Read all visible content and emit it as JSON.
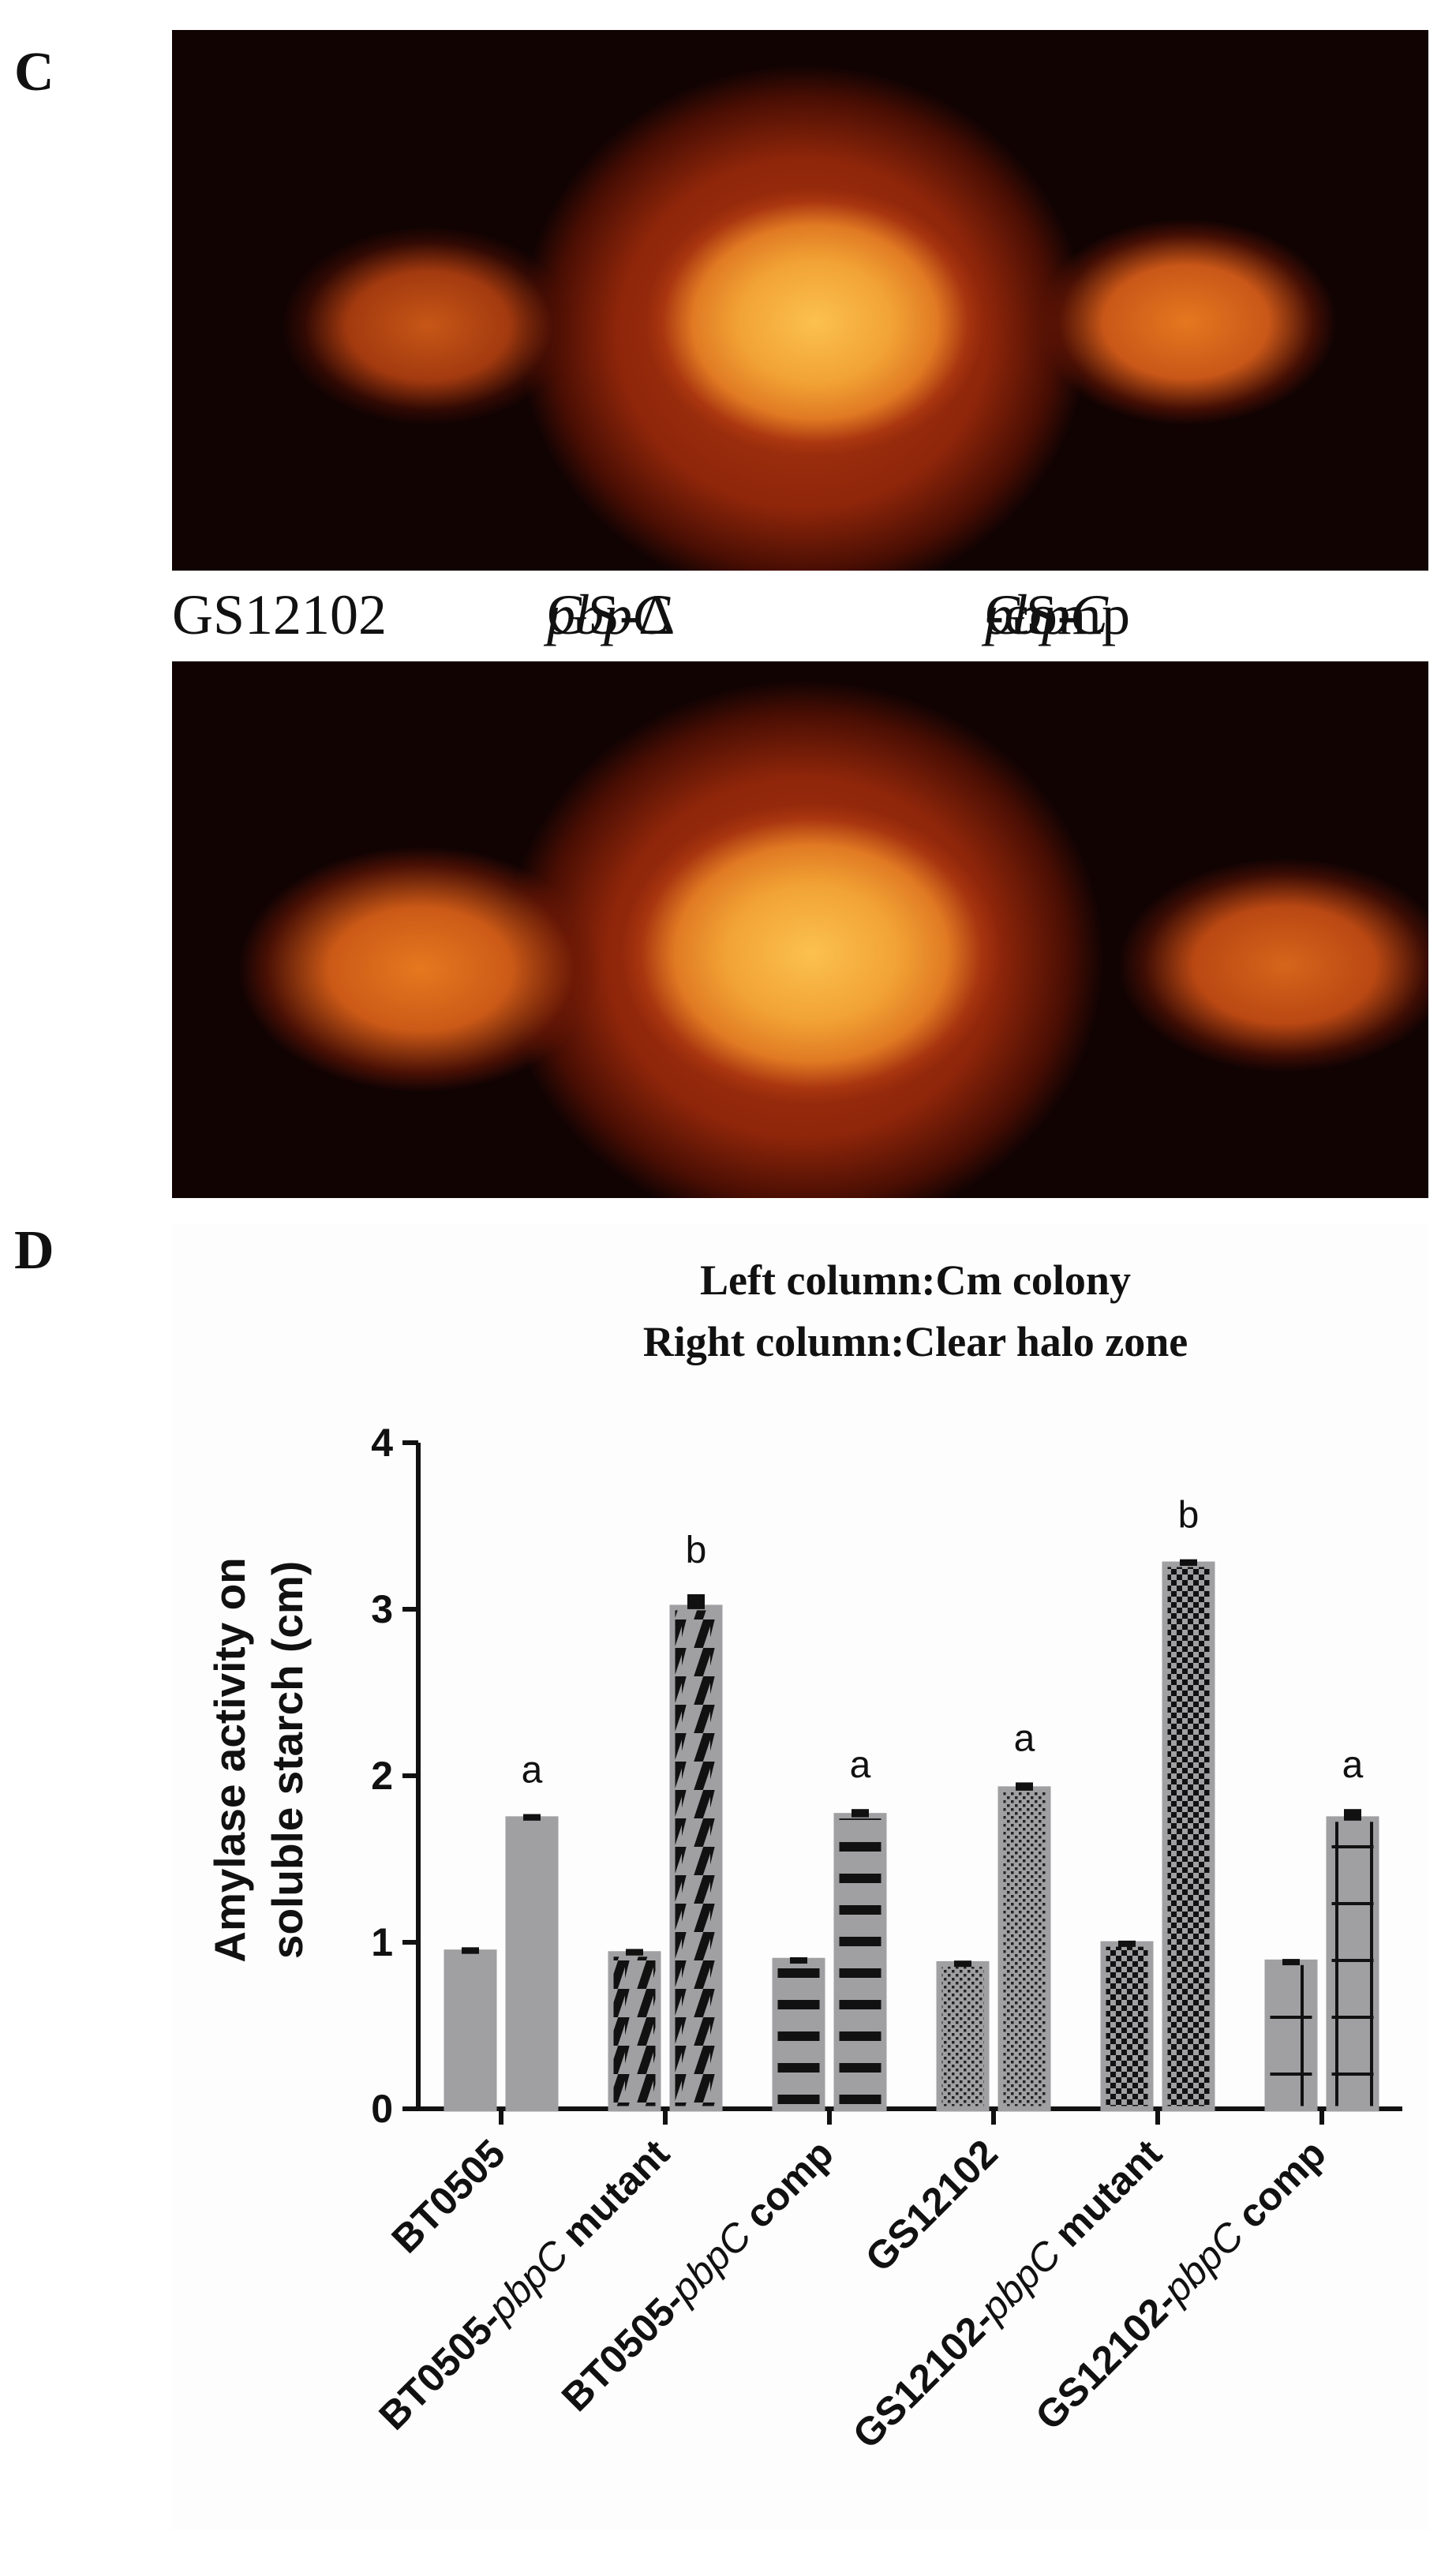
{
  "panel_c": {
    "letter": "C",
    "strain_labels": {
      "wt": "GS12102",
      "mutant_prefix": "GS-Δ",
      "mutant_italic": "pbpC",
      "comp_prefix": "GS-",
      "comp_italic": "pbpC",
      "comp_suffix": "-comp"
    },
    "colors": {
      "background": "#120303",
      "halo": "#a8320f",
      "colony": "#f6b23a"
    }
  },
  "panel_d": {
    "letter": "D",
    "title_line1": "Left column:Cm colony",
    "title_line2": "Right column:Clear halo zone"
  },
  "chart_data": {
    "type": "bar",
    "title": "Left column:Cm colony / Right column:Clear halo zone",
    "ylabel_line1": "Amylase activity on",
    "ylabel_line2": "soluble starch  (cm)",
    "ylim": [
      0,
      4
    ],
    "yticks": [
      "0",
      "1",
      "2",
      "3",
      "4"
    ],
    "categories": [
      {
        "bold": "BT0505",
        "italic": "",
        "suffix": ""
      },
      {
        "bold": "BT0505-",
        "italic": "pbpC",
        "suffix": " mutant"
      },
      {
        "bold": "BT0505-",
        "italic": "pbpC",
        "suffix": " comp"
      },
      {
        "bold": "GS12102",
        "italic": "",
        "suffix": ""
      },
      {
        "bold": "GS12102-",
        "italic": "pbpC",
        "suffix": " mutant"
      },
      {
        "bold": "GS12102-",
        "italic": "pbpC",
        "suffix": " comp"
      }
    ],
    "series": [
      {
        "values": [
          0.94,
          0.93,
          0.89,
          0.87,
          0.99,
          0.88
        ],
        "errors": [
          0.03,
          0.03,
          0.02,
          0.02,
          0.02,
          0.02
        ]
      },
      {
        "values": [
          1.74,
          3.01,
          1.76,
          1.92,
          3.27,
          1.74
        ],
        "errors": [
          0.03,
          0.08,
          0.04,
          0.04,
          0.03,
          0.06
        ]
      }
    ],
    "patterns": [
      "solid",
      "diagonal",
      "horizontal",
      "dots",
      "checker",
      "cross"
    ],
    "significance": [
      "a",
      "b",
      "a",
      "a",
      "b",
      "a"
    ],
    "bar_color": "#a0a0a3",
    "grid": false
  }
}
